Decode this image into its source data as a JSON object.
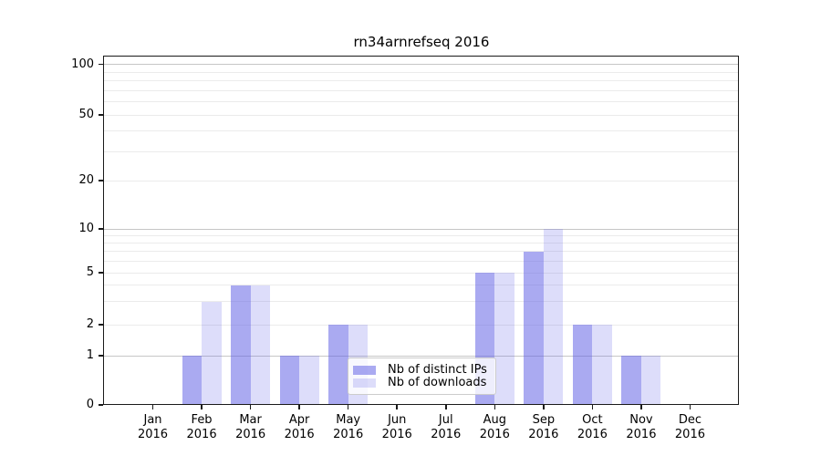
{
  "chart_data": {
    "type": "bar",
    "title": "rn34arnrefseq 2016",
    "categories": [
      "Jan",
      "Feb",
      "Mar",
      "Apr",
      "May",
      "Jun",
      "Jul",
      "Aug",
      "Sep",
      "Oct",
      "Nov",
      "Dec"
    ],
    "year_label": "2016",
    "series": [
      {
        "name": "Nb of distinct IPs",
        "color": "rgba(100,100,230,0.55)",
        "values": [
          0,
          1,
          4,
          1,
          2,
          0,
          0,
          5,
          7,
          2,
          1,
          0
        ]
      },
      {
        "name": "Nb of downloads",
        "color": "rgba(100,100,230,0.22)",
        "values": [
          0,
          3,
          4,
          1,
          2,
          0,
          0,
          5,
          10,
          2,
          1,
          0
        ]
      }
    ],
    "y_axis": {
      "scale": "log-like",
      "tick_labels": [
        100,
        50,
        20,
        10,
        5,
        2,
        1,
        0
      ],
      "major_gridline_values": [
        1,
        10,
        100
      ],
      "minor_gridline_values": [
        2,
        3,
        4,
        5,
        6,
        7,
        8,
        9,
        20,
        30,
        40,
        50,
        60,
        70,
        80,
        90
      ]
    },
    "legend_position": "lower center-right",
    "grid": true,
    "colors": {
      "bars_distinct_ips_rendered": "#a9a9f0",
      "bars_downloads_rendered": "#dcdcf8",
      "major_grid": "#c6c6c6",
      "minor_grid": "#ebebeb",
      "spine": "#1a1a1a",
      "background": "#ffffff"
    }
  }
}
